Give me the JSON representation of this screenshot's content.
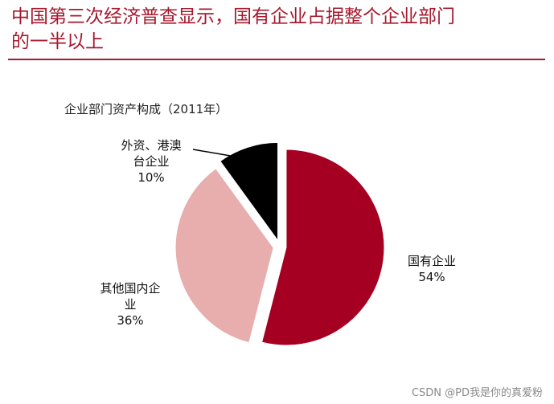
{
  "headline": {
    "line1": "中国第三次经济普查显示，国有企业占据整个企业部门",
    "line2": "的一半以上"
  },
  "chart_data": {
    "type": "pie",
    "title": "企业部门资产构成（2011年）",
    "slices": [
      {
        "label_lines": [
          "国有企业"
        ],
        "value": 54,
        "value_label": "54%",
        "color": "#a50021"
      },
      {
        "label_lines": [
          "其他国内企",
          "业"
        ],
        "value": 36,
        "value_label": "36%",
        "color": "#e8adad"
      },
      {
        "label_lines": [
          "外资、港澳",
          "台企业"
        ],
        "value": 10,
        "value_label": "10%",
        "color": "#000000"
      }
    ],
    "start": "12 o'clock, clockwise",
    "legend": "none (direct labels)"
  },
  "watermark": "CSDN @PD我是你的真爱粉"
}
